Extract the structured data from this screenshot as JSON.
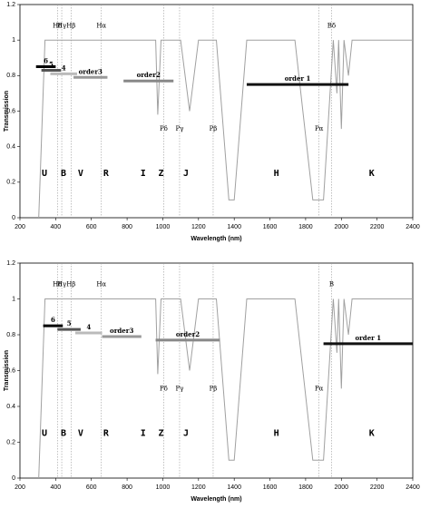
{
  "chart_data": [
    {
      "type": "line",
      "x_label": "Wavelength (nm)",
      "y_label": "Transmission",
      "xlim": [
        200,
        2400
      ],
      "ylim": [
        0,
        1.2
      ],
      "xticks": [
        200,
        400,
        600,
        800,
        1000,
        1200,
        1400,
        1600,
        1800,
        2000,
        2200,
        2400
      ],
      "yticks": [
        0,
        0.2,
        0.4,
        0.6,
        0.8,
        1,
        1.2
      ],
      "series": [
        {
          "color": "#a0a0a0",
          "x": [
            305,
            340,
            960,
            972,
            990,
            1100,
            1150,
            1200,
            1300,
            1370,
            1400,
            1470,
            1740,
            1840,
            1900,
            1955,
            1975,
            1985,
            2000,
            2015,
            2040,
            2060,
            2400
          ],
          "values": [
            0,
            1,
            1,
            0.58,
            1,
            1,
            0.6,
            1,
            1,
            0.1,
            0.1,
            1,
            1,
            0.1,
            0.1,
            1,
            0.7,
            1,
            0.5,
            1,
            0.8,
            1,
            1
          ]
        }
      ],
      "lines": [
        {
          "label": "Hδ",
          "x": 410
        },
        {
          "label": "Hγ",
          "x": 434
        },
        {
          "label": "Hβ",
          "x": 486
        },
        {
          "label": "Hα",
          "x": 656
        },
        {
          "label": "Pδ",
          "x": 1005
        },
        {
          "label": "Pγ",
          "x": 1094
        },
        {
          "label": "Pβ",
          "x": 1282
        },
        {
          "label": "Pα",
          "x": 1875
        },
        {
          "label": "Bδ",
          "x": 1945
        }
      ],
      "orders": [
        {
          "label": "6",
          "color": "#000000",
          "x": [
            290,
            400
          ],
          "y": 0.85
        },
        {
          "label": "5",
          "color": "#555555",
          "x": [
            320,
            430
          ],
          "y": 0.83
        },
        {
          "label": "4",
          "color": "#bbbbbb",
          "x": [
            370,
            520
          ],
          "y": 0.81
        },
        {
          "label": "order3",
          "color": "#999999",
          "x": [
            500,
            690
          ],
          "y": 0.79
        },
        {
          "label": "order2",
          "color": "#888888",
          "x": [
            780,
            1060
          ],
          "y": 0.77
        },
        {
          "label": "order 1",
          "color": "#111111",
          "x": [
            1470,
            2040
          ],
          "y": 0.75
        }
      ],
      "filters": [
        {
          "label": "U",
          "x": 337
        },
        {
          "label": "B",
          "x": 444
        },
        {
          "label": "V",
          "x": 540
        },
        {
          "label": "R",
          "x": 682
        },
        {
          "label": "I",
          "x": 890
        },
        {
          "label": "Z",
          "x": 990
        },
        {
          "label": "J",
          "x": 1130
        },
        {
          "label": "H",
          "x": 1636
        },
        {
          "label": "K",
          "x": 2170
        }
      ]
    },
    {
      "type": "line",
      "x_label": "Wavelength (nm)",
      "y_label": "Transmission",
      "xlim": [
        200,
        2400
      ],
      "ylim": [
        0,
        1.2
      ],
      "xticks": [
        200,
        400,
        600,
        800,
        1000,
        1200,
        1400,
        1600,
        1800,
        2000,
        2200,
        2400
      ],
      "yticks": [
        0,
        0.2,
        0.4,
        0.6,
        0.8,
        1,
        1.2
      ],
      "series": [
        {
          "color": "#a0a0a0",
          "x": [
            305,
            340,
            960,
            972,
            990,
            1100,
            1150,
            1200,
            1300,
            1370,
            1400,
            1470,
            1740,
            1840,
            1900,
            1955,
            1975,
            1985,
            2000,
            2015,
            2040,
            2060,
            2400
          ],
          "values": [
            0,
            1,
            1,
            0.58,
            1,
            1,
            0.6,
            1,
            1,
            0.1,
            0.1,
            1,
            1,
            0.1,
            0.1,
            1,
            0.7,
            1,
            0.5,
            1,
            0.8,
            1,
            1
          ]
        }
      ],
      "lines": [
        {
          "label": "Hδ",
          "x": 410
        },
        {
          "label": "Hγ",
          "x": 434
        },
        {
          "label": "Hβ",
          "x": 486
        },
        {
          "label": "Hα",
          "x": 656
        },
        {
          "label": "Pδ",
          "x": 1005
        },
        {
          "label": "Pγ",
          "x": 1094
        },
        {
          "label": "Pβ",
          "x": 1282
        },
        {
          "label": "Pα",
          "x": 1875
        },
        {
          "label": "B",
          "x": 1945
        }
      ],
      "orders": [
        {
          "label": "6",
          "color": "#000000",
          "x": [
            330,
            440
          ],
          "y": 0.85
        },
        {
          "label": "5",
          "color": "#555555",
          "x": [
            410,
            540
          ],
          "y": 0.83
        },
        {
          "label": "4",
          "color": "#bbbbbb",
          "x": [
            510,
            660
          ],
          "y": 0.81
        },
        {
          "label": "order3",
          "color": "#999999",
          "x": [
            660,
            880
          ],
          "y": 0.79
        },
        {
          "label": "order2",
          "color": "#888888",
          "x": [
            960,
            1320
          ],
          "y": 0.77
        },
        {
          "label": "order 1",
          "color": "#111111",
          "x": [
            1900,
            2400
          ],
          "y": 0.75
        }
      ],
      "filters": [
        {
          "label": "U",
          "x": 337
        },
        {
          "label": "B",
          "x": 444
        },
        {
          "label": "V",
          "x": 540
        },
        {
          "label": "R",
          "x": 682
        },
        {
          "label": "I",
          "x": 890
        },
        {
          "label": "Z",
          "x": 990
        },
        {
          "label": "J",
          "x": 1130
        },
        {
          "label": "H",
          "x": 1636
        },
        {
          "label": "K",
          "x": 2170
        }
      ]
    }
  ]
}
